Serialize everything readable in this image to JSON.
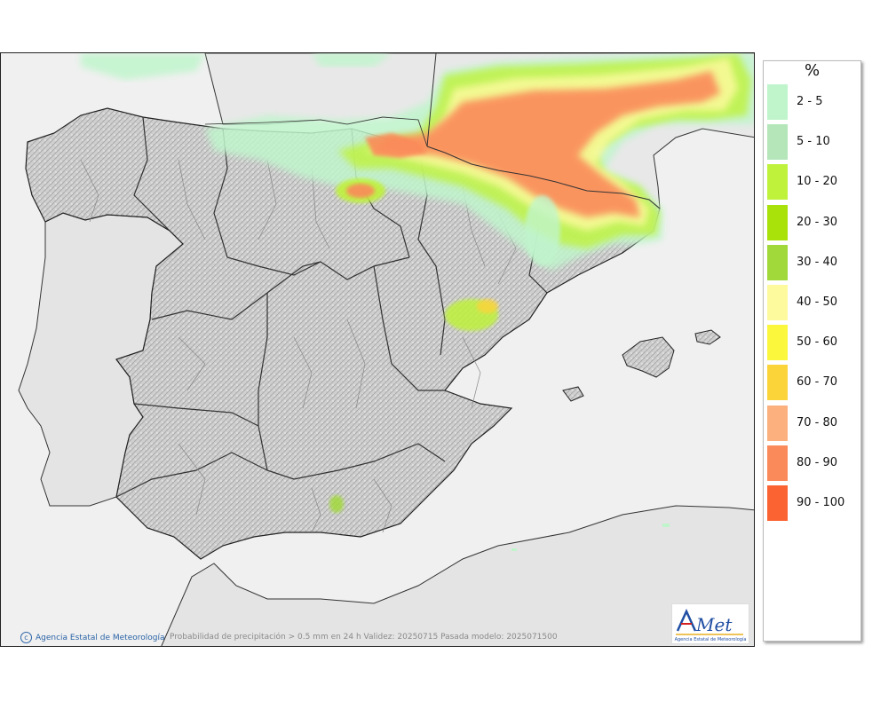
{
  "legend": {
    "title": "%",
    "items": [
      {
        "label": "2 - 5",
        "color": "#c0f5cc"
      },
      {
        "label": "5 - 10",
        "color": "#b4e6b9"
      },
      {
        "label": "10 - 20",
        "color": "#bff23b"
      },
      {
        "label": "20 - 30",
        "color": "#a9e10b"
      },
      {
        "label": "30 - 40",
        "color": "#a2d93a"
      },
      {
        "label": "40 - 50",
        "color": "#fcfa9c"
      },
      {
        "label": "50 - 60",
        "color": "#fbf73c"
      },
      {
        "label": "60 - 70",
        "color": "#fbd43a"
      },
      {
        "label": "70 - 80",
        "color": "#fbb07e"
      },
      {
        "label": "80 - 90",
        "color": "#fb8a5a"
      },
      {
        "label": "90 - 100",
        "color": "#fb6432"
      }
    ]
  },
  "footer": {
    "copyright": "Agencia Estatal de Meteorología",
    "caption": "Probabilidad de precipitación > 0.5 mm en 24 h Validez: 20250715 Pasada modelo: 2025071500"
  },
  "logo": {
    "name": "AEMet",
    "subtitle": "Agencia Estatal de Meteorología"
  }
}
